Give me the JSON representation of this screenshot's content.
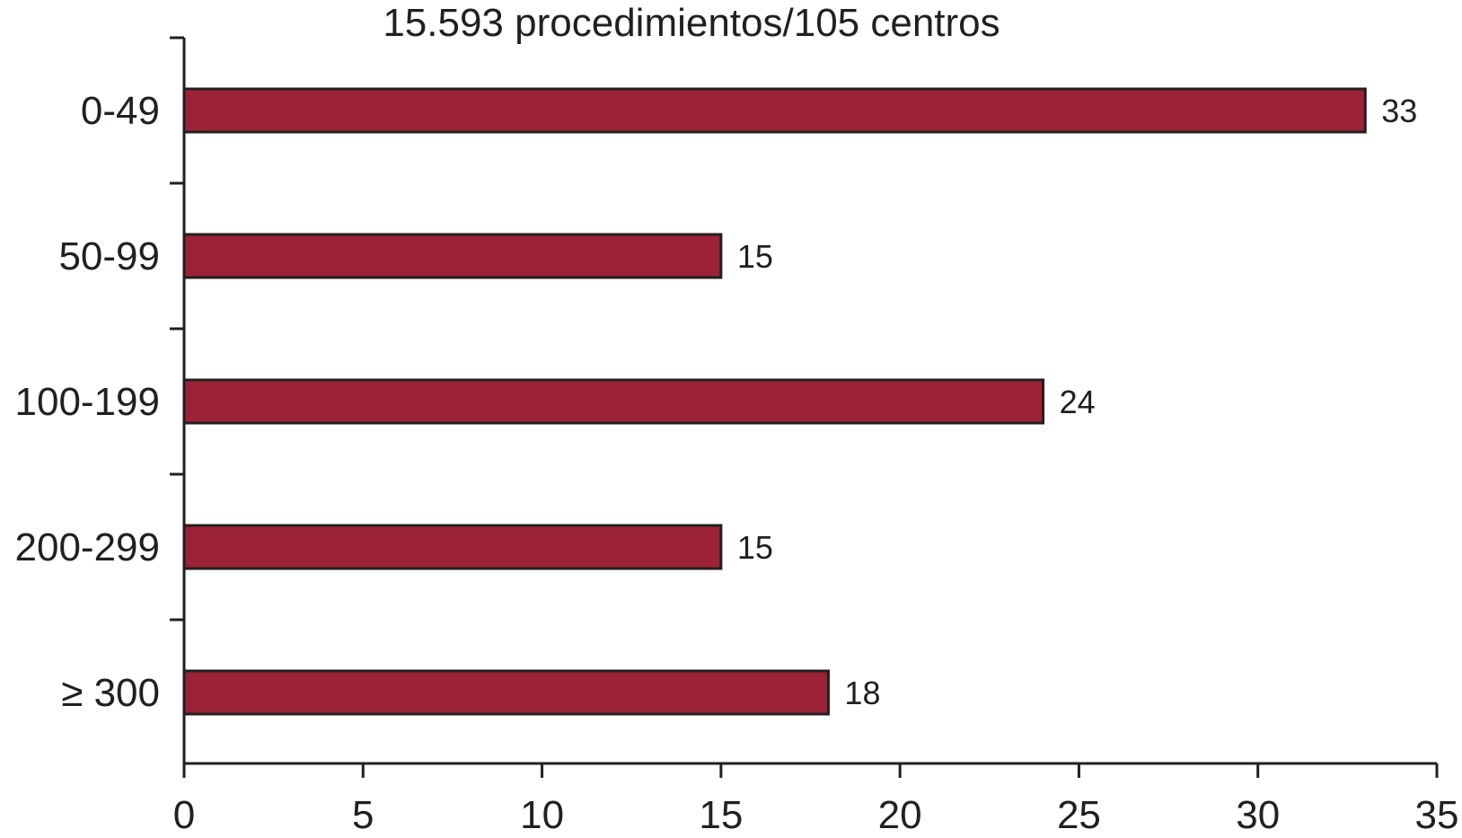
{
  "chart_data": {
    "type": "bar",
    "orientation": "horizontal",
    "title": "15.593 procedimientos/105 centros",
    "categories": [
      "0-49",
      "50-99",
      "100-199",
      "200-299",
      "≥ 300"
    ],
    "values": [
      33,
      15,
      24,
      15,
      18
    ],
    "data_labels": [
      "33",
      "15",
      "24",
      "15",
      "18"
    ],
    "xlim": [
      0,
      35
    ],
    "x_ticks": [
      0,
      5,
      10,
      15,
      20,
      25,
      30,
      35
    ],
    "x_tick_labels": [
      "0",
      "5",
      "10",
      "15",
      "20",
      "25",
      "30",
      "35"
    ],
    "xlabel": "",
    "ylabel": "",
    "grid": false,
    "bar_color": "#9b2335",
    "edge_color": "#231f20"
  }
}
